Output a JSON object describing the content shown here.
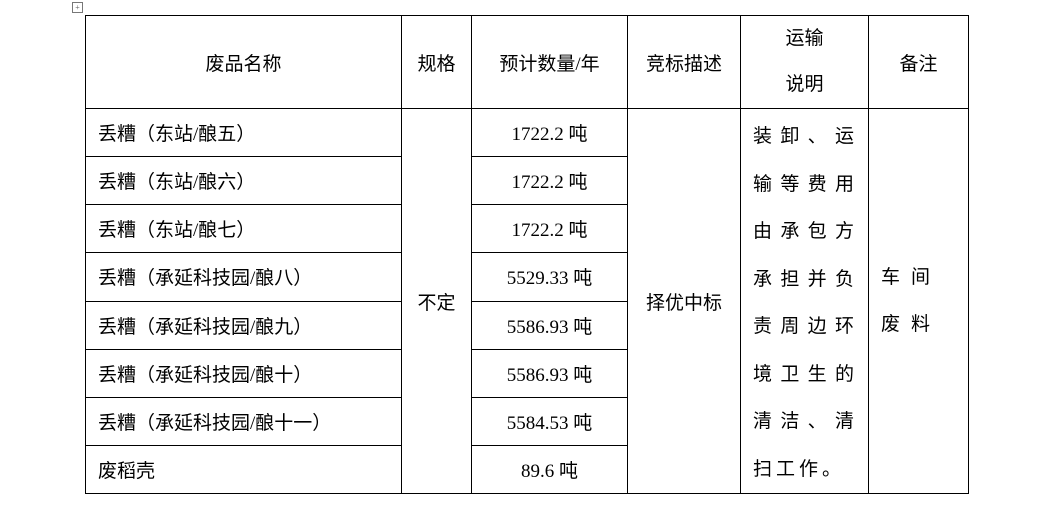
{
  "table": {
    "headers": [
      "废品名称",
      "规格",
      "预计数量/年",
      "竞标描述",
      "运输说明",
      "备注"
    ],
    "rows": [
      {
        "name": "丢糟（东站/酿五）",
        "quantity": "1722.2 吨"
      },
      {
        "name": "丢糟（东站/酿六）",
        "quantity": "1722.2 吨"
      },
      {
        "name": "丢糟（东站/酿七）",
        "quantity": "1722.2 吨"
      },
      {
        "name": "丢糟（承延科技园/酿八）",
        "quantity": "5529.33 吨"
      },
      {
        "name": "丢糟（承延科技园/酿九）",
        "quantity": "5586.93 吨"
      },
      {
        "name": "丢糟（承延科技园/酿十）",
        "quantity": "5586.93 吨"
      },
      {
        "name": "丢糟（承延科技园/酿十一）",
        "quantity": "5584.53 吨"
      },
      {
        "name": "废稻壳",
        "quantity": "89.6 吨"
      }
    ],
    "spec": "不定",
    "bid": "择优中标",
    "transport": "装卸、运输等费用由承包方承担并负责周边环境卫生的清洁、清扫工作。",
    "remark": "车间废料"
  }
}
